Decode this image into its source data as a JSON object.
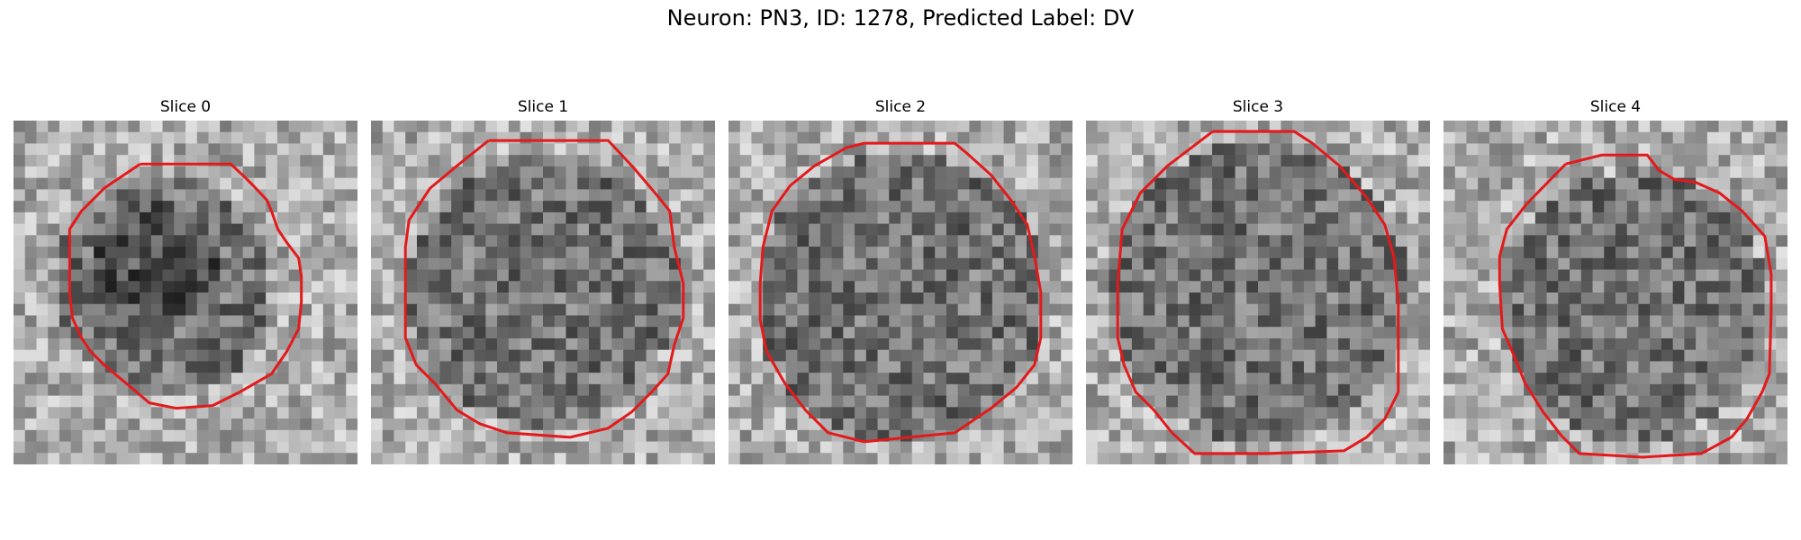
{
  "figure": {
    "title": "Neuron: PN3, ID: 1278, Predicted Label: DV",
    "contour_color": "#e31a1c",
    "colormap": "grayscale",
    "panels": [
      {
        "title": "Slice 0"
      },
      {
        "title": "Slice 1"
      },
      {
        "title": "Slice 2"
      },
      {
        "title": "Slice 3"
      },
      {
        "title": "Slice 4"
      }
    ]
  }
}
